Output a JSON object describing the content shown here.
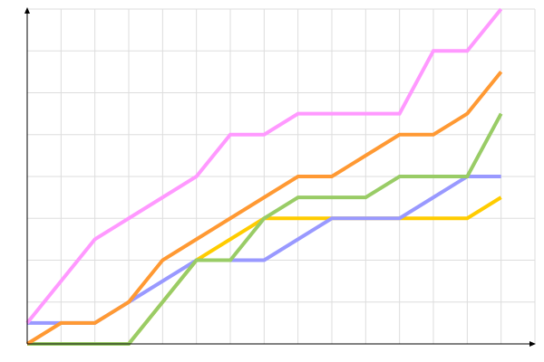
{
  "chart_data": {
    "type": "line",
    "x": [
      0,
      1,
      2,
      3,
      4,
      5,
      6,
      7,
      8,
      9,
      10,
      11,
      12,
      13,
      14
    ],
    "series": [
      {
        "color": "#ffcc00",
        "values": [
          0,
          0,
          0,
          0,
          1,
          2,
          2.5,
          3,
          3,
          3,
          3,
          3,
          3,
          3,
          3.5
        ]
      },
      {
        "color": "#9999ff",
        "values": [
          0.5,
          0.5,
          0.5,
          1,
          1.5,
          2,
          2,
          2,
          2.5,
          3,
          3,
          3,
          3.5,
          4,
          4
        ]
      },
      {
        "color": "#99cc66",
        "values": [
          0,
          0,
          0,
          0,
          1,
          2,
          2,
          3,
          3.5,
          3.5,
          3.5,
          4,
          4,
          4,
          5.5
        ]
      },
      {
        "color": "#ff9933",
        "values": [
          0,
          0.5,
          0.5,
          1,
          2,
          2.5,
          3,
          3.5,
          4,
          4,
          4.5,
          5,
          5,
          5.5,
          6.5
        ]
      },
      {
        "color": "#ff99ff",
        "values": [
          0.5,
          1.5,
          2.5,
          3,
          3.5,
          4,
          5,
          5,
          5.5,
          5.5,
          5.5,
          5.5,
          7,
          7,
          8
        ]
      }
    ],
    "xlim": [
      0,
      15
    ],
    "xticks": [
      0,
      1,
      2,
      3,
      4,
      5,
      6,
      7,
      8,
      9,
      10,
      11,
      12,
      13,
      14,
      15
    ],
    "ylim": [
      0,
      8
    ],
    "yticks": [
      0,
      1,
      2,
      3,
      4,
      5,
      6,
      7,
      8
    ],
    "grid": true
  }
}
